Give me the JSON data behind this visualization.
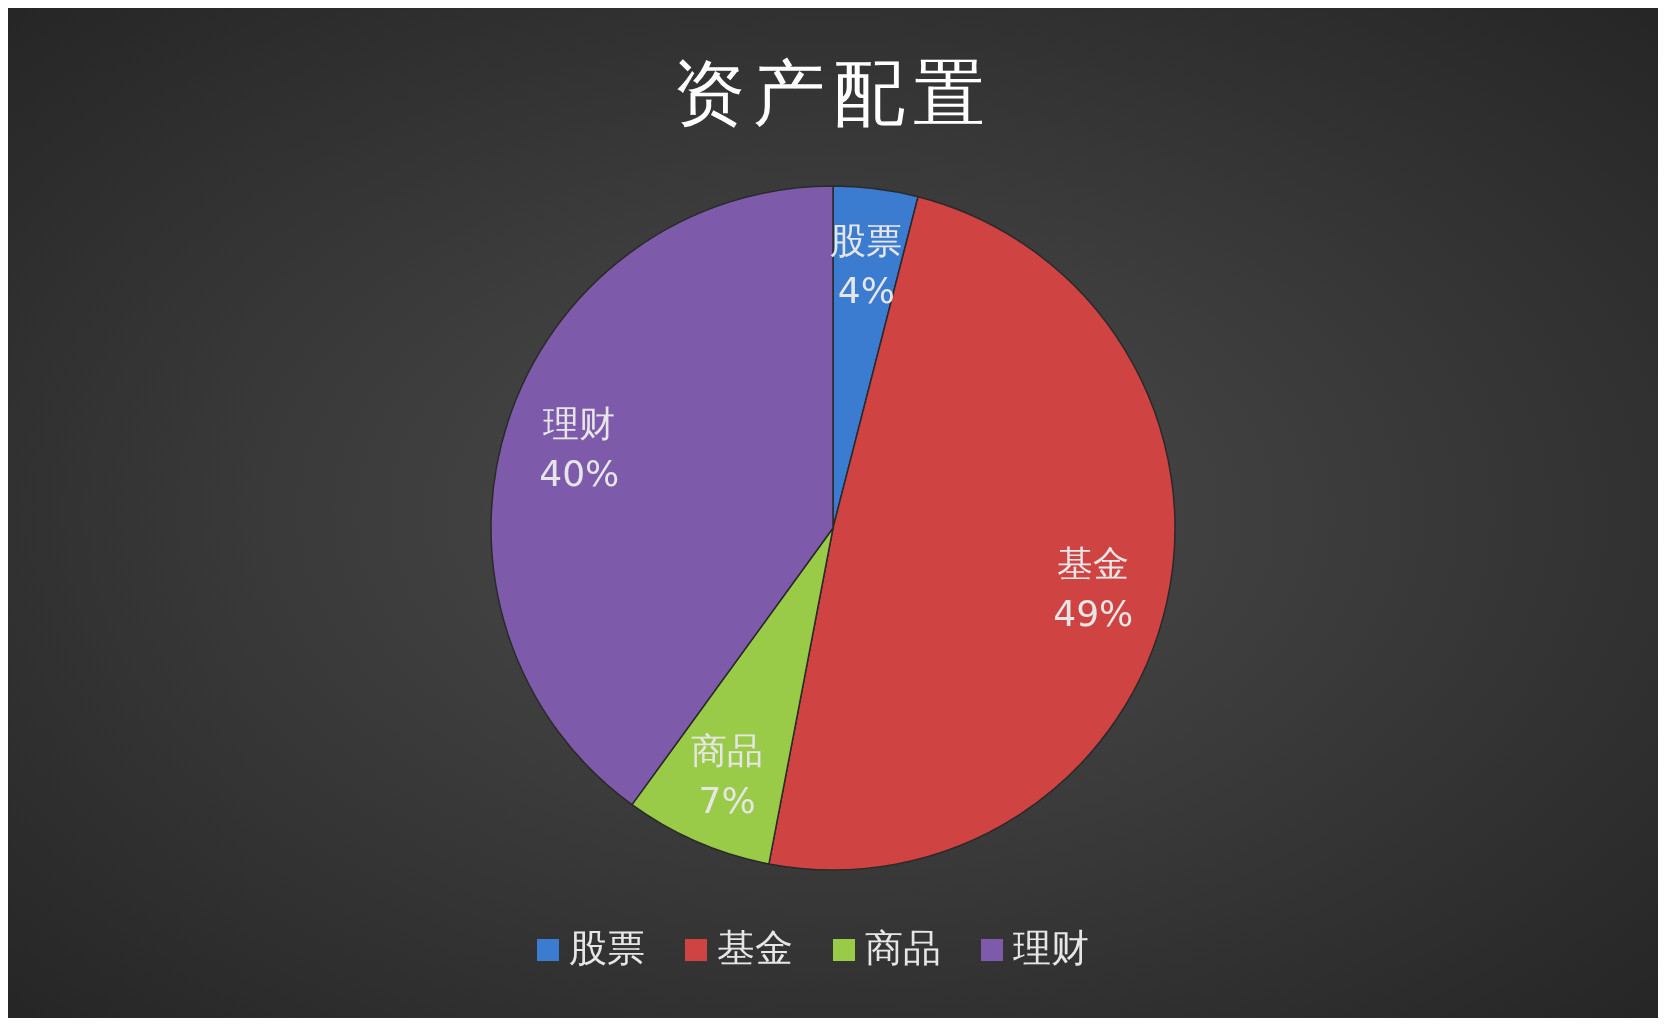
{
  "chart_data": {
    "type": "pie",
    "title": "资产配置",
    "categories": [
      "股票",
      "基金",
      "商品",
      "理财"
    ],
    "values": [
      4,
      49,
      7,
      40
    ],
    "colors": [
      "#3b7bd0",
      "#d04343",
      "#9acb48",
      "#7d5aaa"
    ],
    "value_labels": [
      "4%",
      "49%",
      "7%",
      "40%"
    ],
    "legend": "bottom"
  }
}
